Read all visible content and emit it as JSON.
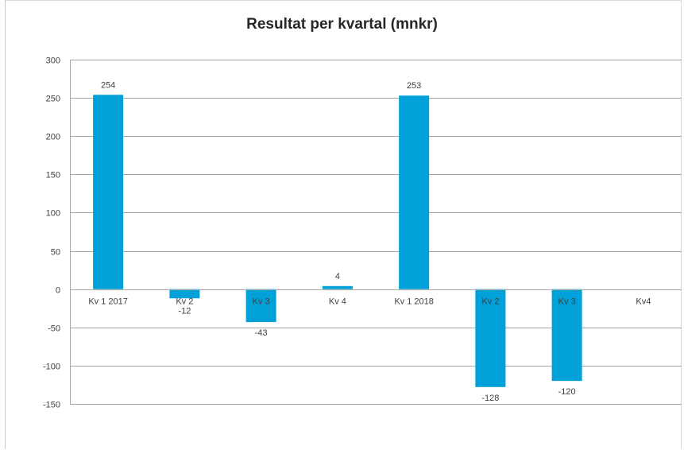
{
  "chart_data": {
    "type": "bar",
    "title": "Resultat per kvartal (mnkr)",
    "xlabel": "",
    "ylabel": "",
    "categories": [
      "Kv 1 2017",
      "Kv 2",
      "Kv 3",
      "Kv 4",
      "Kv 1 2018",
      "Kv 2",
      "Kv 3",
      "Kv4"
    ],
    "values": [
      254,
      -12,
      -43,
      4,
      253,
      -128,
      -120,
      null
    ],
    "data_labels": [
      "254",
      "-12",
      "-43",
      "4",
      "253",
      "-128",
      "-120",
      ""
    ],
    "ylim": [
      -150,
      300
    ],
    "yticks": [
      300,
      250,
      200,
      150,
      100,
      50,
      0,
      -50,
      -100,
      -150
    ],
    "grid": true,
    "legend": "none",
    "bar_color": "#00a0d8",
    "grid_color": "#a6a6a6"
  }
}
